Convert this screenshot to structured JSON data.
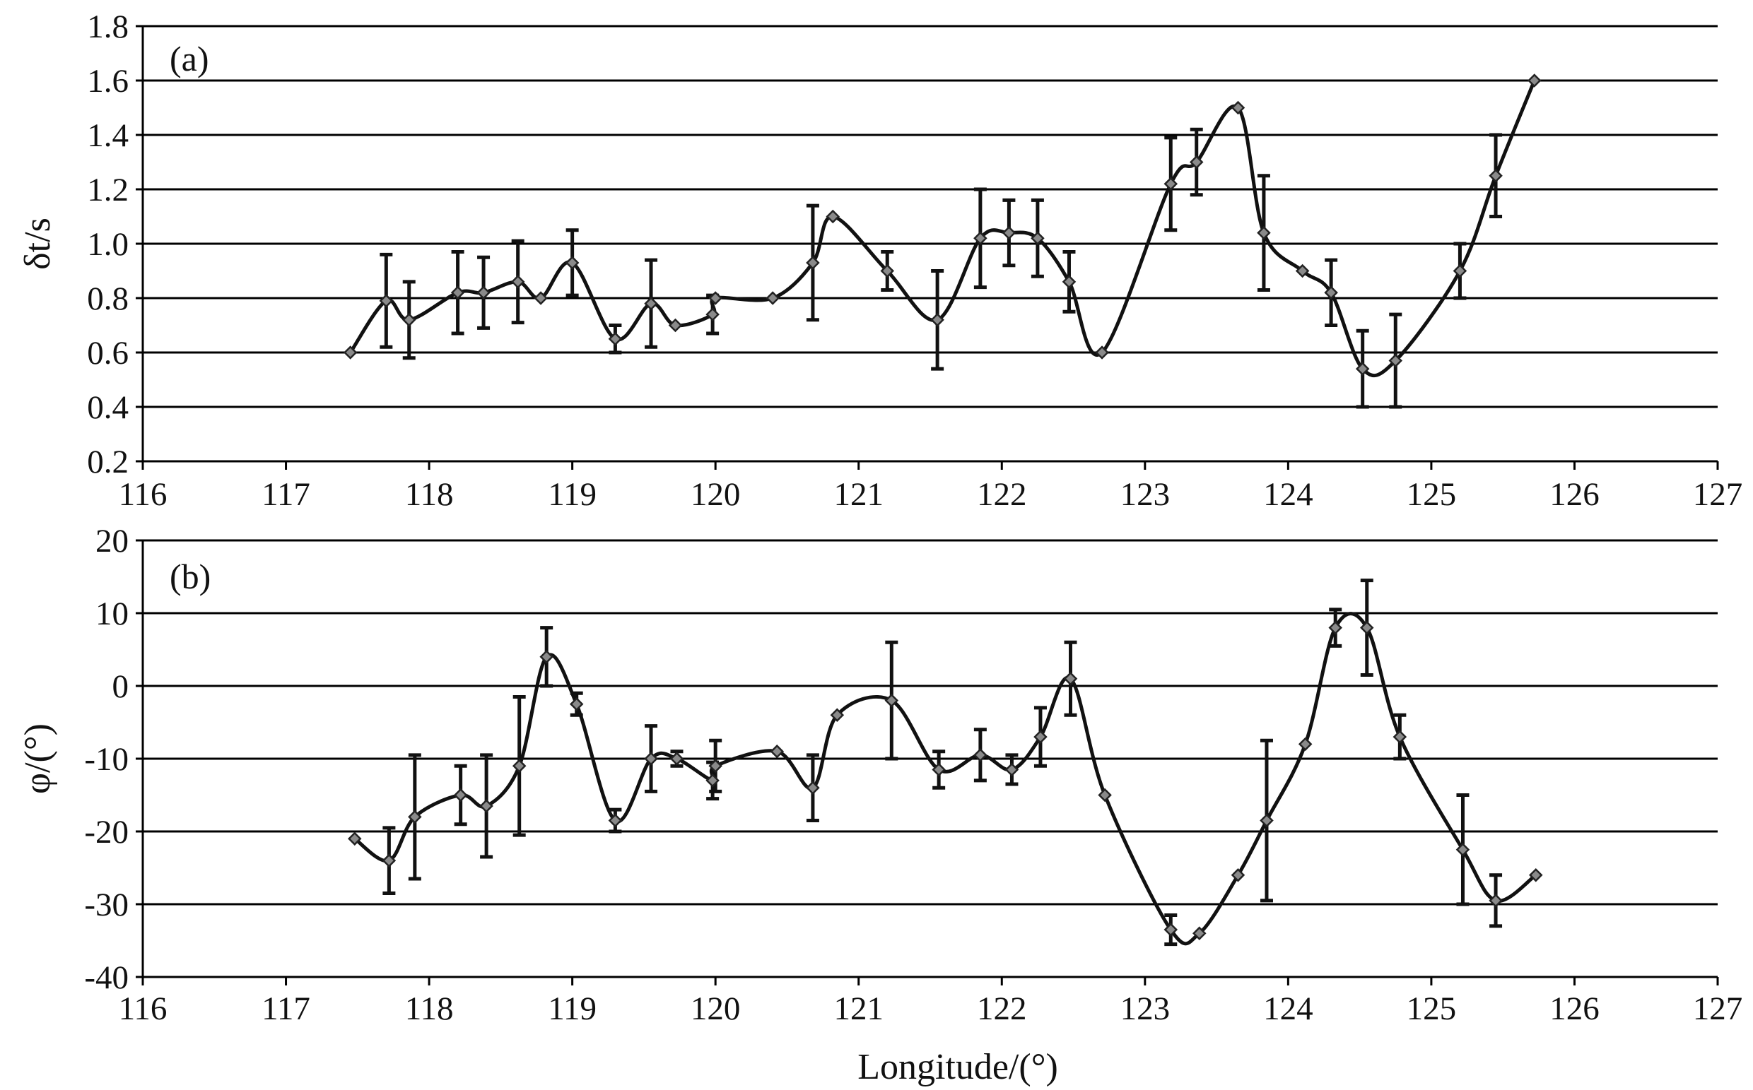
{
  "chart_data": [
    {
      "type": "line",
      "panel_label": "(a)",
      "xlabel": "",
      "ylabel": "δt/s",
      "xlim": [
        116,
        127
      ],
      "ylim": [
        0.2,
        1.8
      ],
      "x_ticks": [
        "116",
        "117",
        "118",
        "119",
        "120",
        "121",
        "122",
        "123",
        "124",
        "125",
        "126",
        "127"
      ],
      "y_ticks": [
        "0.2",
        "0.4",
        "0.6",
        "0.8",
        "1.0",
        "1.2",
        "1.4",
        "1.6",
        "1.8"
      ],
      "grid": true,
      "points": [
        {
          "x": 117.45,
          "y": 0.6
        },
        {
          "x": 117.7,
          "y": 0.79,
          "err": 0.17
        },
        {
          "x": 117.86,
          "y": 0.72,
          "err": 0.14
        },
        {
          "x": 118.2,
          "y": 0.82,
          "err": 0.15
        },
        {
          "x": 118.38,
          "y": 0.82,
          "err": 0.13
        },
        {
          "x": 118.62,
          "y": 0.86,
          "err": 0.15
        },
        {
          "x": 118.78,
          "y": 0.8
        },
        {
          "x": 119.0,
          "y": 0.93,
          "err": 0.12
        },
        {
          "x": 119.3,
          "y": 0.65,
          "err": 0.05
        },
        {
          "x": 119.55,
          "y": 0.78,
          "err": 0.16
        },
        {
          "x": 119.72,
          "y": 0.7
        },
        {
          "x": 119.98,
          "y": 0.74,
          "err": 0.07
        },
        {
          "x": 120.0,
          "y": 0.8
        },
        {
          "x": 120.4,
          "y": 0.8
        },
        {
          "x": 120.68,
          "y": 0.93,
          "err": 0.21
        },
        {
          "x": 120.82,
          "y": 1.1
        },
        {
          "x": 121.2,
          "y": 0.9,
          "err": 0.07
        },
        {
          "x": 121.55,
          "y": 0.72,
          "err": 0.18
        },
        {
          "x": 121.85,
          "y": 1.02,
          "err": 0.18
        },
        {
          "x": 122.05,
          "y": 1.04,
          "err": 0.12
        },
        {
          "x": 122.25,
          "y": 1.02,
          "err": 0.14
        },
        {
          "x": 122.47,
          "y": 0.86,
          "err": 0.11
        },
        {
          "x": 122.7,
          "y": 0.6
        },
        {
          "x": 123.18,
          "y": 1.22,
          "err": 0.17
        },
        {
          "x": 123.36,
          "y": 1.3,
          "err": 0.12
        },
        {
          "x": 123.65,
          "y": 1.5
        },
        {
          "x": 123.83,
          "y": 1.04,
          "err": 0.21
        },
        {
          "x": 124.1,
          "y": 0.9
        },
        {
          "x": 124.3,
          "y": 0.82,
          "err": 0.12
        },
        {
          "x": 124.52,
          "y": 0.54,
          "err": 0.14
        },
        {
          "x": 124.75,
          "y": 0.57,
          "err": 0.17
        },
        {
          "x": 125.2,
          "y": 0.9,
          "err": 0.1
        },
        {
          "x": 125.45,
          "y": 1.25,
          "err": 0.15
        },
        {
          "x": 125.72,
          "y": 1.6
        }
      ]
    },
    {
      "type": "line",
      "panel_label": "(b)",
      "xlabel": "Longitude/(°)",
      "ylabel": "φ/(°)",
      "xlim": [
        116,
        127
      ],
      "ylim": [
        -40,
        20
      ],
      "x_ticks": [
        "116",
        "117",
        "118",
        "119",
        "120",
        "121",
        "122",
        "123",
        "124",
        "125",
        "126",
        "127"
      ],
      "y_ticks": [
        "-40",
        "-30",
        "-20",
        "-10",
        "0",
        "10",
        "20"
      ],
      "grid": true,
      "points": [
        {
          "x": 117.48,
          "y": -21
        },
        {
          "x": 117.72,
          "y": -24,
          "err": 4.5
        },
        {
          "x": 117.9,
          "y": -18,
          "err": 8.5
        },
        {
          "x": 118.22,
          "y": -15,
          "err": 4
        },
        {
          "x": 118.4,
          "y": -16.5,
          "err": 7
        },
        {
          "x": 118.63,
          "y": -11,
          "err": 9.5
        },
        {
          "x": 118.82,
          "y": 4,
          "err": 4
        },
        {
          "x": 119.03,
          "y": -2.5,
          "err": 1.5
        },
        {
          "x": 119.3,
          "y": -18.5,
          "err": 1.5
        },
        {
          "x": 119.55,
          "y": -10,
          "err": 4.5
        },
        {
          "x": 119.73,
          "y": -10,
          "err": 1
        },
        {
          "x": 119.98,
          "y": -13,
          "err": 2.5
        },
        {
          "x": 120.0,
          "y": -11,
          "err": 3.5
        },
        {
          "x": 120.43,
          "y": -9
        },
        {
          "x": 120.68,
          "y": -14,
          "err": 4.5
        },
        {
          "x": 120.85,
          "y": -4
        },
        {
          "x": 121.23,
          "y": -2,
          "err": 8
        },
        {
          "x": 121.56,
          "y": -11.5,
          "err": 2.5
        },
        {
          "x": 121.85,
          "y": -9.5,
          "err": 3.5
        },
        {
          "x": 122.07,
          "y": -11.5,
          "err": 2
        },
        {
          "x": 122.27,
          "y": -7,
          "err": 4
        },
        {
          "x": 122.48,
          "y": 1,
          "err": 5
        },
        {
          "x": 122.72,
          "y": -15
        },
        {
          "x": 123.18,
          "y": -33.5,
          "err": 2
        },
        {
          "x": 123.38,
          "y": -34
        },
        {
          "x": 123.65,
          "y": -26
        },
        {
          "x": 123.85,
          "y": -18.5,
          "err": 11
        },
        {
          "x": 124.12,
          "y": -8
        },
        {
          "x": 124.33,
          "y": 8,
          "err": 2.5
        },
        {
          "x": 124.55,
          "y": 8,
          "err": 6.5
        },
        {
          "x": 124.78,
          "y": -7,
          "err": 3
        },
        {
          "x": 125.22,
          "y": -22.5,
          "err": 7.5
        },
        {
          "x": 125.45,
          "y": -29.5,
          "err": 3.5
        },
        {
          "x": 125.73,
          "y": -26
        }
      ]
    }
  ]
}
